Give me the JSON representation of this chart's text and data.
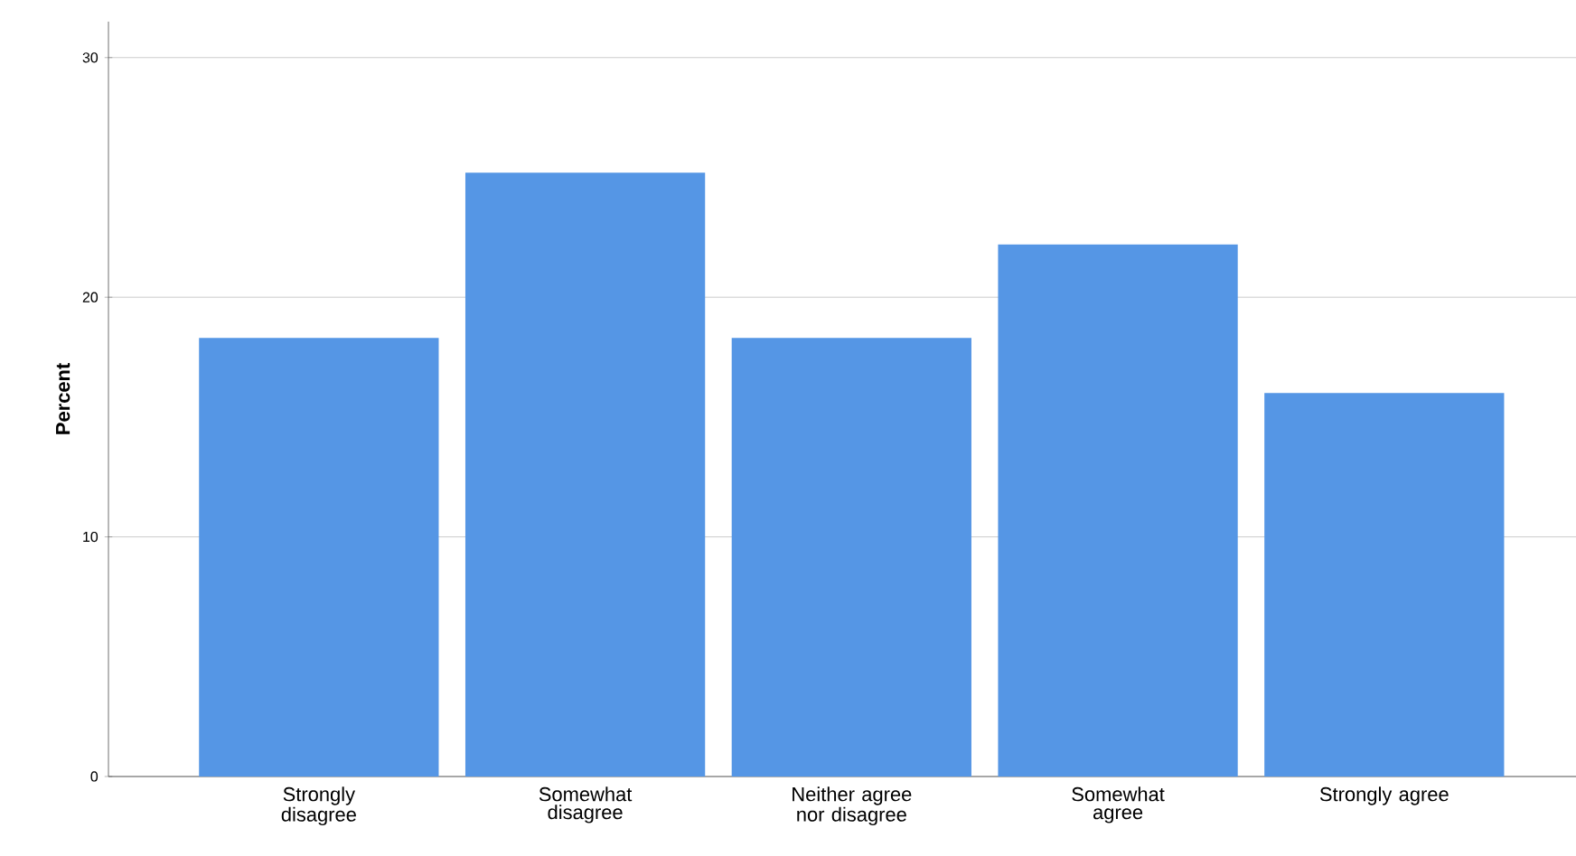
{
  "chart_data": {
    "type": "bar",
    "ylabel": "Percent",
    "categories": [
      "Strongly disagree",
      "Somewhat disagree",
      "Neither agree nor disagree",
      "Somewhat agree",
      "Strongly agree"
    ],
    "values": [
      18.3,
      25.2,
      18.3,
      22.2,
      16.0
    ],
    "color": "#5596e5",
    "ylim": [
      0,
      31.5
    ],
    "yticks": [
      0,
      10,
      20,
      30
    ],
    "grid": "y"
  }
}
